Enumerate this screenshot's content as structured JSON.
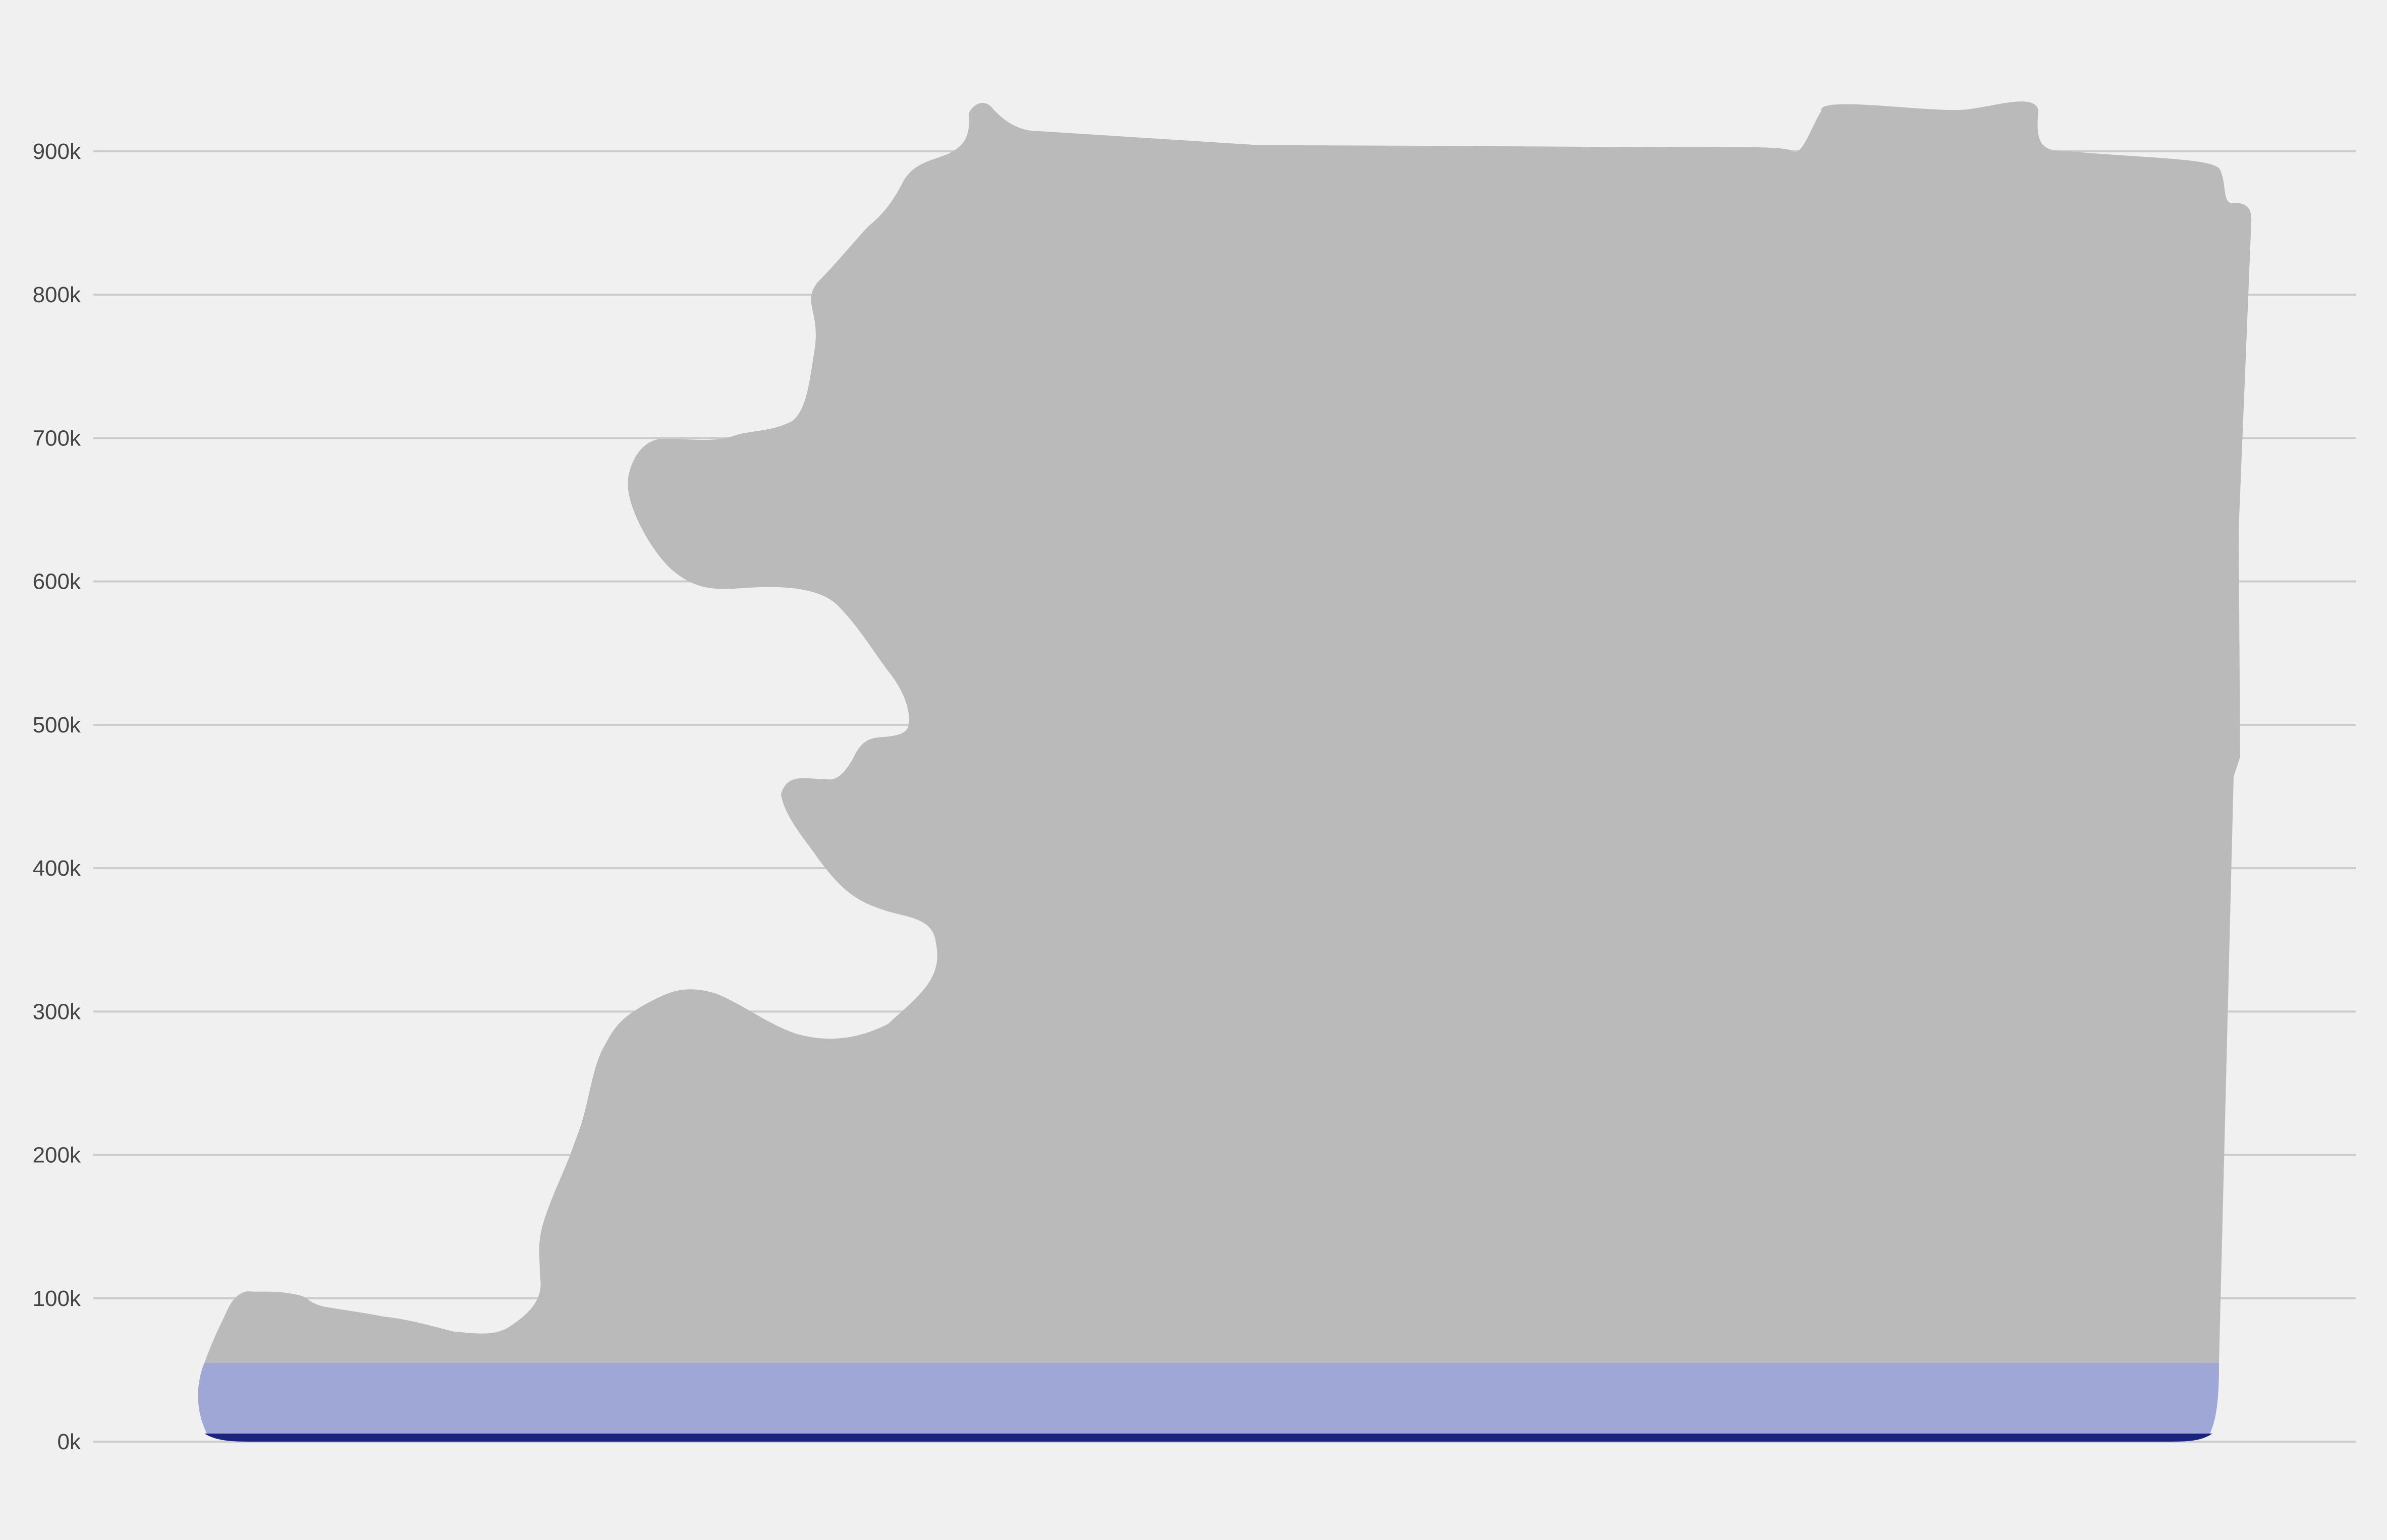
{
  "chart_data": {
    "type": "area",
    "title": "",
    "xlabel": "",
    "ylabel": "",
    "ylim": [
      0,
      950000
    ],
    "grid": {
      "horizontal": true,
      "vertical": false
    },
    "legend": "none",
    "y_ticks": [
      {
        "value": 0,
        "label": "0k"
      },
      {
        "value": 100000,
        "label": "100k"
      },
      {
        "value": 200000,
        "label": "200k"
      },
      {
        "value": 300000,
        "label": "300k"
      },
      {
        "value": 400000,
        "label": "400k"
      },
      {
        "value": 500000,
        "label": "500k"
      },
      {
        "value": 600000,
        "label": "600k"
      },
      {
        "value": 700000,
        "label": "700k"
      },
      {
        "value": 800000,
        "label": "800k"
      },
      {
        "value": 900000,
        "label": "900k"
      }
    ],
    "series": [
      {
        "color": "#bababa",
        "description_points": [
          [
            0,
            55000
          ],
          [
            0.5,
            70000
          ],
          [
            1,
            100000
          ],
          [
            3,
            102000
          ],
          [
            4,
            92000
          ],
          [
            6,
            85000
          ],
          [
            7,
            76000
          ],
          [
            8,
            95000
          ],
          [
            9,
            160000
          ],
          [
            10,
            220000
          ],
          [
            11,
            280000
          ],
          [
            12,
            310000
          ],
          [
            13,
            308000
          ],
          [
            14,
            292000
          ],
          [
            15,
            282000
          ],
          [
            16,
            295000
          ],
          [
            17,
            330000
          ],
          [
            16,
            355000
          ],
          [
            15,
            370000
          ],
          [
            14,
            405000
          ],
          [
            13,
            445000
          ],
          [
            14,
            462000
          ],
          [
            15,
            468000
          ],
          [
            16,
            490000
          ],
          [
            17,
            510000
          ],
          [
            16,
            550000
          ],
          [
            14,
            590000
          ],
          [
            12,
            595000
          ],
          [
            11,
            602000
          ],
          [
            10,
            640000
          ],
          [
            11,
            690000
          ],
          [
            12,
            698000
          ],
          [
            14,
            705000
          ],
          [
            15,
            720000
          ],
          [
            16,
            770000
          ],
          [
            16,
            800000
          ],
          [
            17,
            840000
          ],
          [
            18,
            875000
          ],
          [
            19,
            895000
          ],
          [
            20,
            903000
          ],
          [
            21,
            932000
          ],
          [
            22,
            915000
          ],
          [
            30,
            903000
          ],
          [
            35,
            902000
          ],
          [
            37,
            902000
          ],
          [
            38,
            928000
          ],
          [
            40,
            930000
          ],
          [
            42,
            935000
          ],
          [
            43,
            903000
          ],
          [
            46,
            895000
          ],
          [
            47,
            870000
          ],
          [
            48,
            860000
          ],
          [
            47.5,
            650000
          ],
          [
            47.5,
            480000
          ],
          [
            47,
            100000
          ],
          [
            47,
            55000
          ]
        ]
      },
      {
        "color": "#9fa7d7",
        "values_top": 55000
      },
      {
        "color": "#1a237e",
        "values_top": 4000
      }
    ],
    "colors": {
      "background": "#f0f0f0",
      "grid": "#cbcbcb",
      "tick_text": "#444444",
      "area_grey": "#bababa",
      "area_lavender": "#9fa7d7",
      "area_navy": "#1a237e"
    }
  }
}
